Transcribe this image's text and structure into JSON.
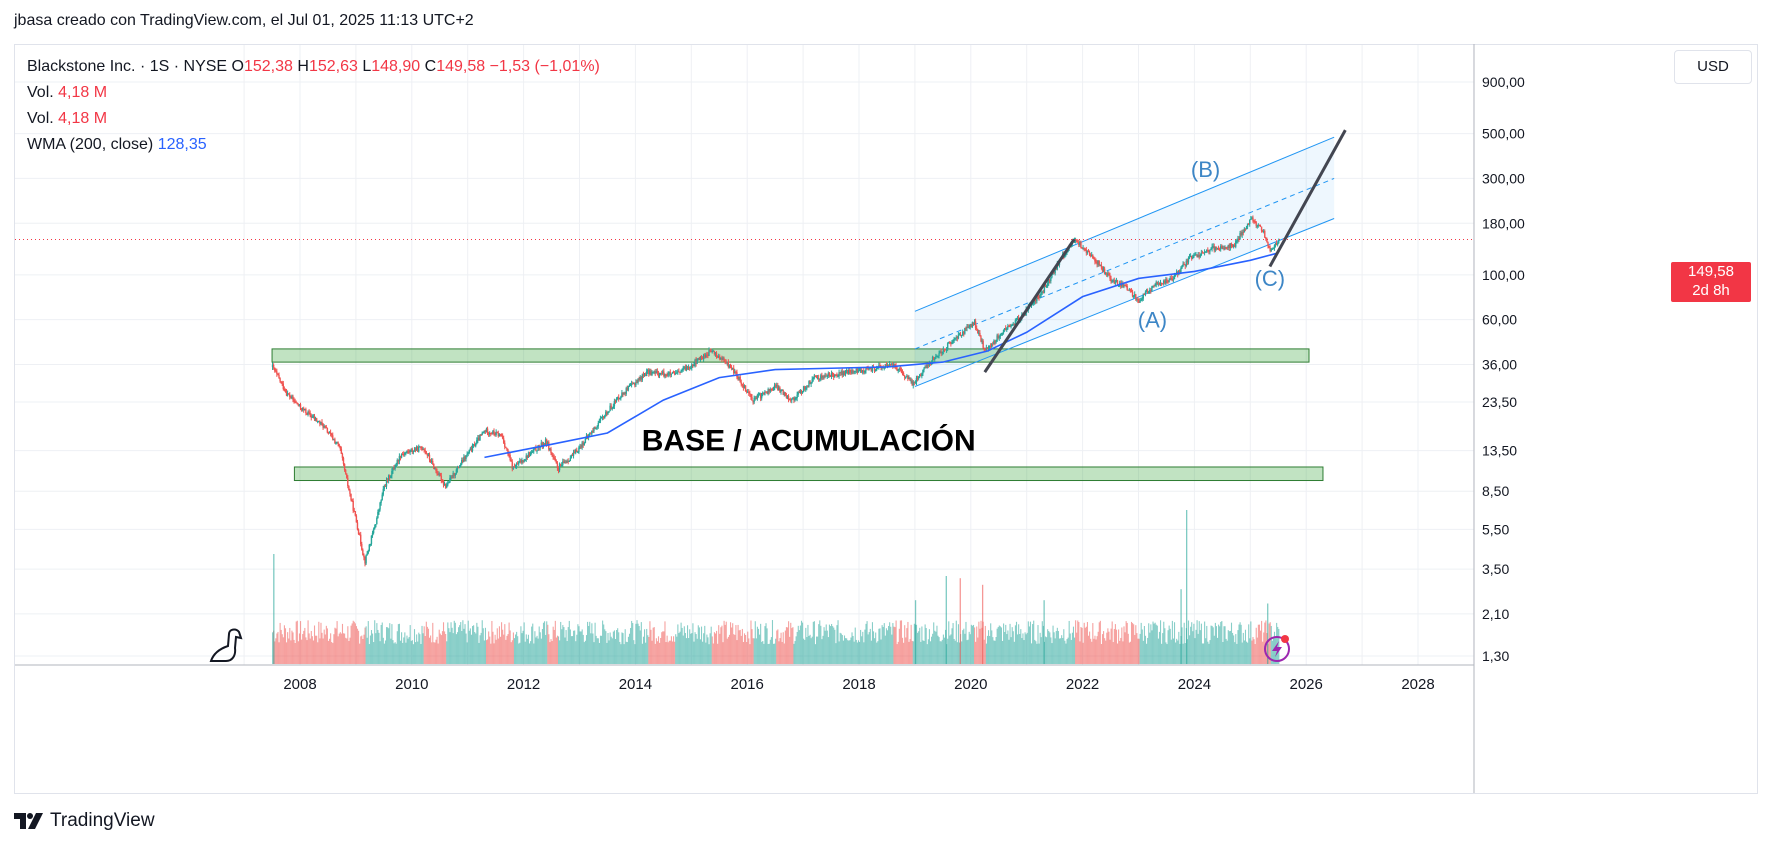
{
  "header": {
    "title": "jbasa creado con TradingView.com, el Jul 01, 2025 11:13 UTC+2"
  },
  "legend": {
    "symbol": "Blackstone Inc. · 1S · NYSE",
    "o_label": "O",
    "o_value": "152,38",
    "h_label": "H",
    "h_value": "152,63",
    "l_label": "L",
    "l_value": "148,90",
    "c_label": "C",
    "c_value": "149,58",
    "change": "−1,53 (−1,01%)",
    "vol1_label": "Vol.",
    "vol1_value": "4,18 M",
    "vol2_label": "Vol.",
    "vol2_value": "4,18 M",
    "wma_label": "WMA (200, close)",
    "wma_value": "128,35"
  },
  "currency_button": "USD",
  "price_tag": {
    "price": "149,58",
    "countdown": "2d 8h"
  },
  "footer": {
    "brand": "TradingView"
  },
  "colors": {
    "up": "#26a69a",
    "down": "#ef5350",
    "wma": "#2962ff",
    "channel": "#2196f3",
    "zone": "#4caf50"
  },
  "chart_data": {
    "type": "candlestick",
    "symbol": "BX",
    "interval": "1W",
    "y_scale": "log",
    "y_ticks": [
      "900,00",
      "500,00",
      "300,00",
      "180,00",
      "100,00",
      "60,00",
      "36,00",
      "23,50",
      "13,50",
      "8,50",
      "5,50",
      "3,50",
      "2,10",
      "1,30"
    ],
    "y_tick_values": [
      900,
      500,
      300,
      180,
      100,
      60,
      36,
      23.5,
      13.5,
      8.5,
      5.5,
      3.5,
      2.1,
      1.3
    ],
    "x_ticks": [
      "2008",
      "2010",
      "2012",
      "2014",
      "2016",
      "2018",
      "2020",
      "2022",
      "2024",
      "2026",
      "2028"
    ],
    "x_tick_years": [
      2008,
      2010,
      2012,
      2014,
      2016,
      2018,
      2020,
      2022,
      2024,
      2026,
      2028
    ],
    "last_price": 149.58,
    "price_path": [
      [
        2007.5,
        35
      ],
      [
        2007.75,
        26
      ],
      [
        2008.0,
        22
      ],
      [
        2008.4,
        18
      ],
      [
        2008.7,
        14
      ],
      [
        2008.85,
        9
      ],
      [
        2009.0,
        6
      ],
      [
        2009.15,
        3.8
      ],
      [
        2009.35,
        6
      ],
      [
        2009.5,
        9
      ],
      [
        2009.8,
        13
      ],
      [
        2010.2,
        14
      ],
      [
        2010.4,
        11
      ],
      [
        2010.6,
        9
      ],
      [
        2010.9,
        12
      ],
      [
        2011.3,
        17
      ],
      [
        2011.6,
        16
      ],
      [
        2011.8,
        11
      ],
      [
        2012.1,
        13
      ],
      [
        2012.4,
        15
      ],
      [
        2012.6,
        11
      ],
      [
        2012.9,
        13
      ],
      [
        2013.3,
        18
      ],
      [
        2013.7,
        25
      ],
      [
        2014.2,
        33
      ],
      [
        2014.7,
        32
      ],
      [
        2015.0,
        36
      ],
      [
        2015.35,
        42
      ],
      [
        2015.7,
        35
      ],
      [
        2016.1,
        24
      ],
      [
        2016.5,
        28
      ],
      [
        2016.8,
        24
      ],
      [
        2017.2,
        31
      ],
      [
        2017.8,
        33
      ],
      [
        2018.2,
        34
      ],
      [
        2018.6,
        36
      ],
      [
        2018.95,
        29
      ],
      [
        2019.3,
        38
      ],
      [
        2019.7,
        48
      ],
      [
        2020.05,
        58
      ],
      [
        2020.25,
        42
      ],
      [
        2020.55,
        52
      ],
      [
        2020.9,
        62
      ],
      [
        2021.3,
        85
      ],
      [
        2021.6,
        120
      ],
      [
        2021.85,
        150
      ],
      [
        2022.2,
        120
      ],
      [
        2022.5,
        95
      ],
      [
        2022.8,
        85
      ],
      [
        2023.0,
        75
      ],
      [
        2023.3,
        90
      ],
      [
        2023.6,
        95
      ],
      [
        2023.9,
        120
      ],
      [
        2024.3,
        135
      ],
      [
        2024.7,
        140
      ],
      [
        2025.0,
        190
      ],
      [
        2025.2,
        170
      ],
      [
        2025.35,
        130
      ],
      [
        2025.5,
        149.58
      ]
    ],
    "wma_200_path": [
      [
        2011.3,
        12.5
      ],
      [
        2012.5,
        14.5
      ],
      [
        2013.5,
        16.5
      ],
      [
        2014.5,
        24
      ],
      [
        2015.5,
        31
      ],
      [
        2016.5,
        34
      ],
      [
        2017.5,
        34.5
      ],
      [
        2018.5,
        35
      ],
      [
        2019.5,
        37
      ],
      [
        2020.3,
        42
      ],
      [
        2021.0,
        52
      ],
      [
        2022.0,
        78
      ],
      [
        2023.0,
        96
      ],
      [
        2024.0,
        104
      ],
      [
        2025.0,
        118
      ],
      [
        2025.5,
        128.35
      ]
    ],
    "zones": [
      {
        "name": "upper",
        "low": 37,
        "high": 43,
        "from": 2007.5,
        "to": 2026.05
      },
      {
        "name": "lower",
        "low": 9.6,
        "high": 11.2,
        "from": 2007.9,
        "to": 2026.3
      }
    ],
    "channel": {
      "start_year": 2019.0,
      "end_year": 2026.5,
      "lower": [
        28,
        190
      ],
      "mid": [
        43,
        300
      ],
      "upper": [
        66,
        480
      ]
    },
    "trendlines": [
      {
        "from": [
          2020.25,
          33
        ],
        "to": [
          2021.85,
          150
        ]
      },
      {
        "from": [
          2025.35,
          110
        ],
        "to": [
          2026.7,
          520
        ]
      }
    ],
    "annotations": [
      {
        "text": "(A)",
        "x": 2023.25,
        "y": 55
      },
      {
        "text": "(B)",
        "x": 2024.2,
        "y": 305
      },
      {
        "text": "(C)",
        "x": 2025.35,
        "y": 88
      },
      {
        "text": "BASE / ACUMULACIÓN",
        "x": 2017.1,
        "y": 13.5
      }
    ],
    "volume_spikes": [
      {
        "x": 2007.52,
        "v": 1.0
      },
      {
        "x": 2019.0,
        "v": 0.58
      },
      {
        "x": 2019.55,
        "v": 0.8
      },
      {
        "x": 2019.8,
        "v": 0.78
      },
      {
        "x": 2020.2,
        "v": 0.72
      },
      {
        "x": 2021.3,
        "v": 0.58
      },
      {
        "x": 2023.75,
        "v": 0.68
      },
      {
        "x": 2023.85,
        "v": 1.4
      },
      {
        "x": 2025.3,
        "v": 0.55
      }
    ]
  }
}
